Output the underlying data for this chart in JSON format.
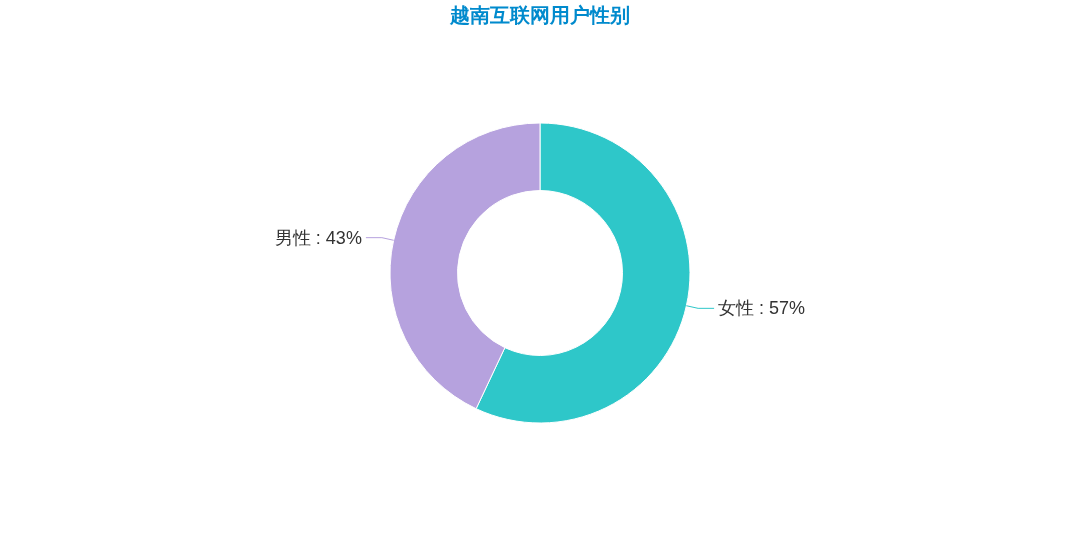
{
  "chart_data": {
    "type": "donut",
    "title": "越南互联网用户性别",
    "categories": [
      "女性",
      "男性"
    ],
    "values": [
      57,
      43
    ],
    "colors": [
      "#2ec7c9",
      "#b6a2de"
    ],
    "value_labels": [
      "57%",
      "43%"
    ]
  }
}
